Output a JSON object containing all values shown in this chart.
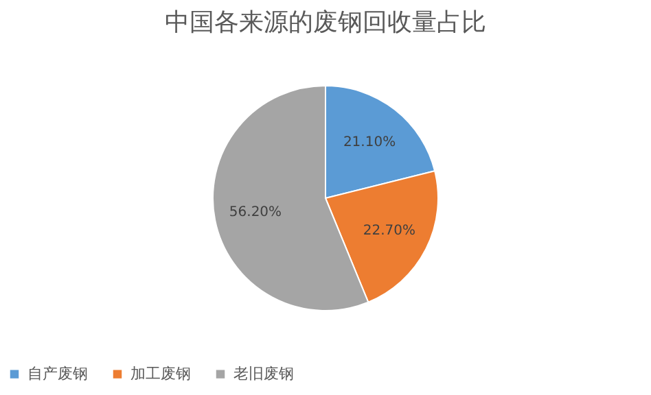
{
  "chart_data": {
    "type": "pie",
    "title": "中国各来源的废钢回收量占比",
    "categories": [
      "自产废钢",
      "加工废钢",
      "老旧废钢"
    ],
    "values": [
      21.1,
      22.7,
      56.2
    ],
    "value_labels": [
      "21.10%",
      "22.70%",
      "56.20%"
    ],
    "colors": [
      "#5b9bd5",
      "#ed7d31",
      "#a5a5a5"
    ],
    "legend": "bottom"
  }
}
